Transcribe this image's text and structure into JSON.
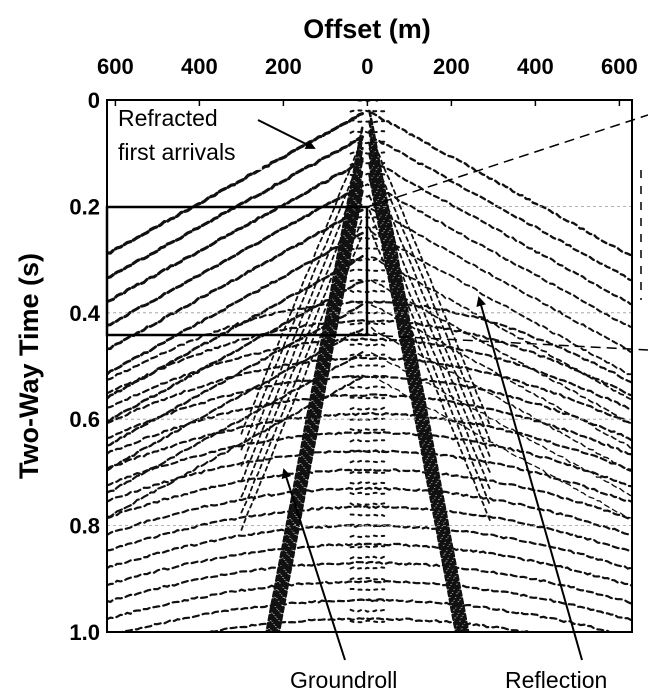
{
  "chart_data": {
    "type": "seismic",
    "title": "Offset (m)",
    "y_label": "Two-Way Time (s)",
    "xlim": [
      -620,
      630
    ],
    "xticks": [
      {
        "value": -600,
        "label": "600"
      },
      {
        "value": -400,
        "label": "400"
      },
      {
        "value": -200,
        "label": "200"
      },
      0,
      200,
      400,
      600
    ],
    "ylim": [
      0,
      1
    ],
    "yticks": [
      0,
      0.2,
      0.4,
      0.6,
      0.8,
      {
        "value": 1,
        "label": "1.0"
      }
    ],
    "grid": true,
    "annotation_refracted_1": "Refracted",
    "annotation_refracted_2": "first arrivals",
    "annotation_groundroll": "Groundroll",
    "annotation_reflection": "Reflection"
  }
}
